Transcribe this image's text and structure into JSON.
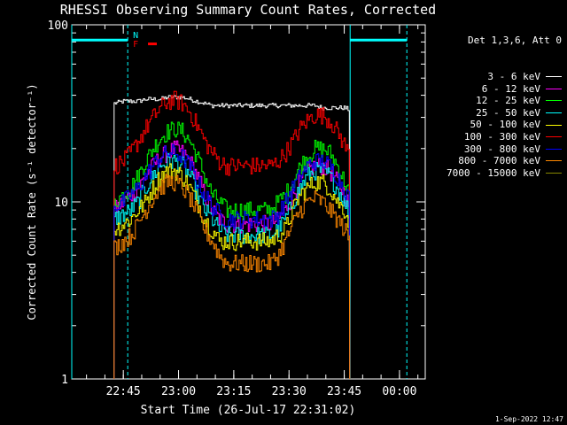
{
  "chart_data": {
    "type": "line",
    "title": "RHESSI Observing Summary Count Rates, Corrected",
    "xlabel": "Start Time (26-Jul-17 22:31:02)",
    "ylabel": "Corrected Count Rate (s⁻¹ detector⁻¹)",
    "yscale": "log",
    "ylim": [
      1,
      100
    ],
    "xlim_minutes": [
      0,
      96
    ],
    "y_ticks": [
      {
        "value": 1,
        "label": "1"
      },
      {
        "value": 10,
        "label": "10"
      },
      {
        "value": 100,
        "label": "100"
      }
    ],
    "x_ticks": [
      {
        "minute": 14,
        "label": "22:45"
      },
      {
        "minute": 29,
        "label": "23:00"
      },
      {
        "minute": 44,
        "label": "23:15"
      },
      {
        "minute": 59,
        "label": "23:30"
      },
      {
        "minute": 74,
        "label": "23:45"
      },
      {
        "minute": 89,
        "label": "00:00"
      }
    ],
    "series_times": [
      11.5,
      14,
      16,
      18,
      20,
      22,
      24,
      26,
      28,
      30,
      32,
      34,
      36,
      38,
      40,
      42,
      44,
      46,
      48,
      50,
      52,
      54,
      56,
      58,
      60,
      62,
      64,
      66,
      68,
      70,
      72,
      74,
      75.5
    ],
    "series": [
      {
        "name": "3 - 6 keV",
        "color": "#ffffff",
        "values": [
          36,
          37,
          37,
          37,
          38,
          38,
          38,
          39,
          39,
          39,
          38,
          37,
          36,
          35,
          35,
          35,
          35,
          35,
          35,
          35,
          35,
          35,
          35,
          35,
          35,
          35,
          35,
          35,
          34,
          34,
          34,
          34,
          33
        ]
      },
      {
        "name": "6 - 12 keV",
        "color": "#ff00ff",
        "values": [
          9,
          10,
          11,
          12,
          14,
          16,
          18,
          19,
          20,
          19,
          17,
          14,
          11,
          9,
          8,
          7.5,
          7.5,
          7.5,
          7.5,
          7.5,
          7.5,
          7.5,
          8,
          9,
          11,
          13,
          15,
          16,
          16,
          15,
          13,
          11,
          9
        ]
      },
      {
        "name": "12 - 25 keV",
        "color": "#00ff00",
        "values": [
          10,
          11,
          12,
          14,
          17,
          20,
          23,
          25,
          26,
          25,
          22,
          18,
          14,
          11,
          10,
          9,
          9,
          9,
          9,
          9,
          9,
          9,
          10,
          11,
          13,
          16,
          18,
          20,
          20,
          19,
          16,
          13,
          11
        ]
      },
      {
        "name": "25 - 50 keV",
        "color": "#00ffff",
        "values": [
          8,
          8.5,
          9,
          10,
          12,
          14,
          16,
          17,
          17,
          16,
          14,
          11,
          9,
          8,
          7,
          6.5,
          6.5,
          6.5,
          6.5,
          6.5,
          6.5,
          6.5,
          7,
          8,
          10,
          12,
          14,
          15,
          15,
          14,
          12,
          10,
          8.5
        ]
      },
      {
        "name": "50 - 100 keV",
        "color": "#ffff00",
        "values": [
          7,
          7.5,
          8,
          9,
          10,
          12,
          14,
          15,
          15,
          14,
          12,
          10,
          8,
          7,
          6,
          6,
          6,
          6,
          6,
          6,
          6,
          6,
          6.5,
          7,
          9,
          11,
          12,
          13,
          13,
          12,
          10,
          9,
          7.5
        ]
      },
      {
        "name": "100 - 300 keV",
        "color": "#ff0000",
        "values": [
          16,
          17,
          19,
          22,
          26,
          30,
          34,
          37,
          38,
          36,
          32,
          27,
          22,
          19,
          17,
          16,
          16,
          16,
          16,
          16,
          16,
          16,
          17,
          19,
          22,
          26,
          29,
          31,
          31,
          29,
          25,
          21,
          18
        ]
      },
      {
        "name": "300 - 800 keV",
        "color": "#0000ff",
        "values": [
          9.5,
          10,
          11,
          12,
          14,
          16,
          18,
          19,
          19,
          18,
          16,
          13,
          11,
          9.5,
          8.5,
          8,
          8,
          8,
          8,
          8,
          8,
          8,
          8.5,
          10,
          12,
          14,
          16,
          17,
          17,
          16,
          14,
          12,
          10
        ]
      },
      {
        "name": "800 - 7000 keV",
        "color": "#ff8800",
        "values": [
          5.5,
          6,
          6.5,
          7.5,
          9,
          10.5,
          12,
          13,
          13,
          12,
          10.5,
          8.5,
          7,
          6,
          5,
          4.5,
          4.5,
          4.5,
          4.5,
          4.5,
          4.5,
          4.5,
          5,
          6,
          7.5,
          9,
          10,
          10.5,
          10,
          9,
          8,
          7,
          6
        ]
      },
      {
        "name": "7000 - 15000 keV",
        "color": "#888800",
        "values": []
      }
    ],
    "markers": {
      "night_bars": [
        {
          "start_minute": 0,
          "end_minute": 15.2,
          "value": 82
        },
        {
          "start_minute": 75.6,
          "end_minute": 91,
          "value": 82
        }
      ],
      "vertical_lines": [
        {
          "minute": 0,
          "style": "solid"
        },
        {
          "minute": 15.2,
          "style": "dashed"
        },
        {
          "minute": 75.6,
          "style": "solid"
        },
        {
          "minute": 91,
          "style": "dashed"
        }
      ],
      "N_label": "N",
      "F_label": "F",
      "flare_bar": {
        "start_minute": 20.7,
        "end_minute": 23.1,
        "value": 78
      }
    },
    "legend_title": "Det 1,3,6, Att 0"
  },
  "footer_date": "1-Sep-2022 12:47"
}
